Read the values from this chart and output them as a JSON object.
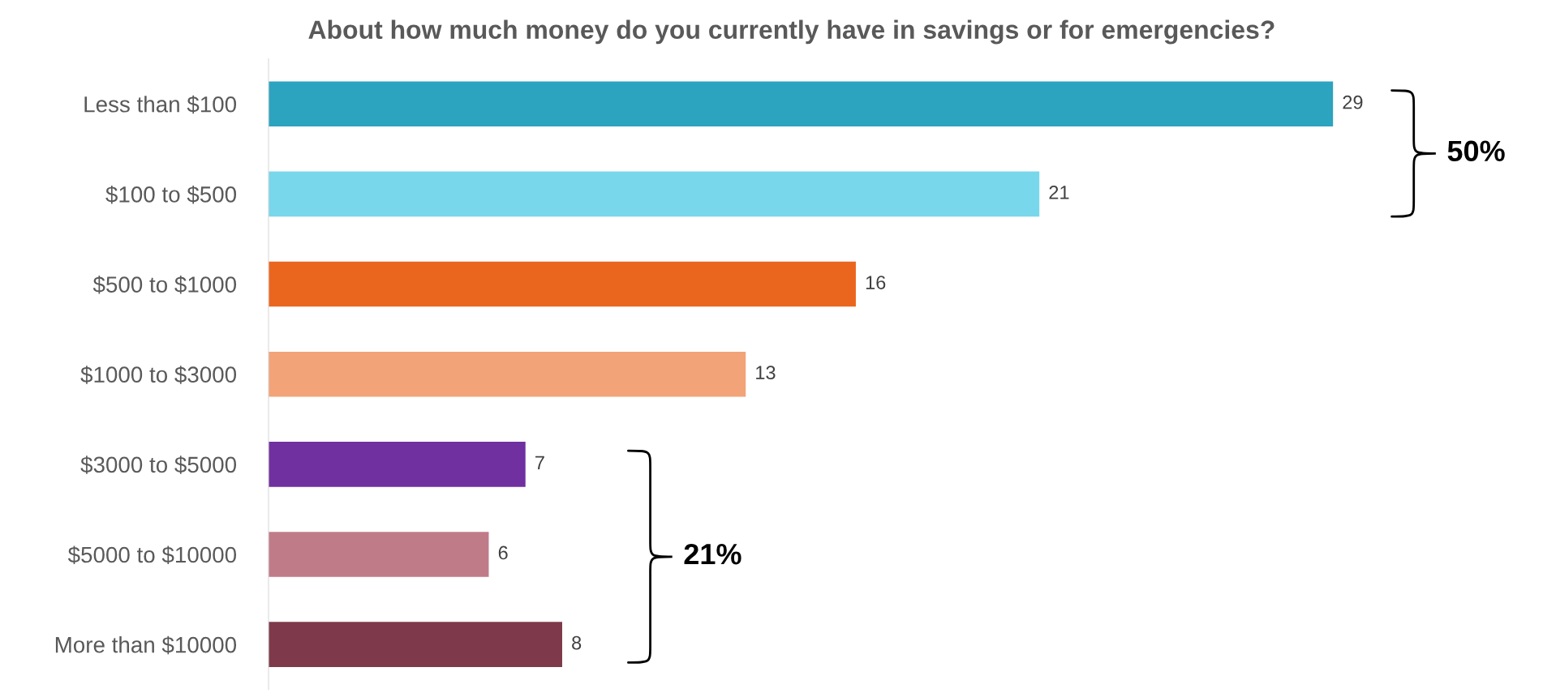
{
  "chart_data": {
    "type": "bar",
    "orientation": "horizontal",
    "title": "About how much money do you currently have in savings or for emergencies?",
    "categories": [
      "Less than $100",
      "$100 to $500",
      "$500 to $1000",
      "$1000 to $3000",
      "$3000 to $5000",
      "$5000 to $10000",
      "More than $10000"
    ],
    "values": [
      29,
      21,
      16,
      13,
      7,
      6,
      8
    ],
    "colors": [
      "#2ca3bf",
      "#78d7ea",
      "#ea661e",
      "#f2a378",
      "#7030a0",
      "#c07b89",
      "#7e3a4a"
    ],
    "data_labels": true,
    "tick_labels": "y",
    "grid": false,
    "annotations": [
      "50%",
      "21%"
    ]
  }
}
